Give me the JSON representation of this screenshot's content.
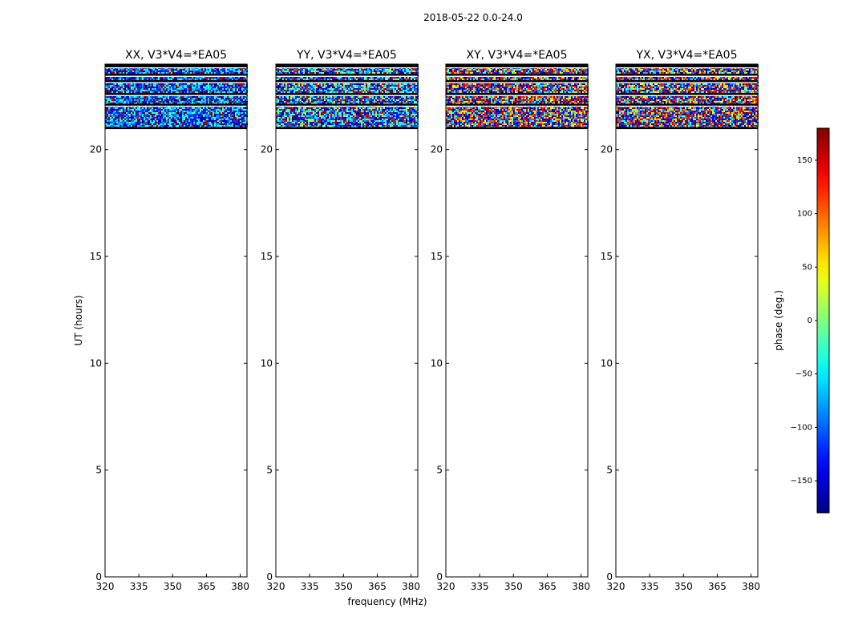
{
  "suptitle": "2018-05-22 0.0-24.0",
  "chart_data": {
    "type": "heatmap",
    "xlabel": "frequency (MHz)",
    "ylabel": "UT (hours)",
    "xlim": [
      320,
      383
    ],
    "ylim": [
      0,
      24
    ],
    "xticks": [
      320,
      335,
      350,
      365,
      380
    ],
    "yticks": [
      0,
      5,
      10,
      15,
      20
    ],
    "data_rows_ut": [
      21.0,
      24.0
    ],
    "flagged_rows_ut": [
      21.0,
      22.1,
      22.6,
      23.2,
      23.5,
      23.9
    ],
    "panels": [
      {
        "title": "XX, V3*V4=*EA05",
        "mean_phase": -110,
        "spread": 70
      },
      {
        "title": "YY, V3*V4=*EA05",
        "mean_phase": -100,
        "spread": 90
      },
      {
        "title": "XY, V3*V4=*EA05",
        "mean_phase": 0,
        "spread": 180
      },
      {
        "title": "YX, V3*V4=*EA05",
        "mean_phase": 10,
        "spread": 180
      }
    ],
    "colorbar": {
      "label": "phase (deg.)",
      "range": [
        -180,
        180
      ],
      "ticks": [
        -150,
        -100,
        -50,
        0,
        50,
        100,
        150
      ],
      "tick_labels": [
        "−150",
        "−100",
        "−50",
        "0",
        "50",
        "100",
        "150"
      ],
      "colormap": "jet"
    }
  }
}
